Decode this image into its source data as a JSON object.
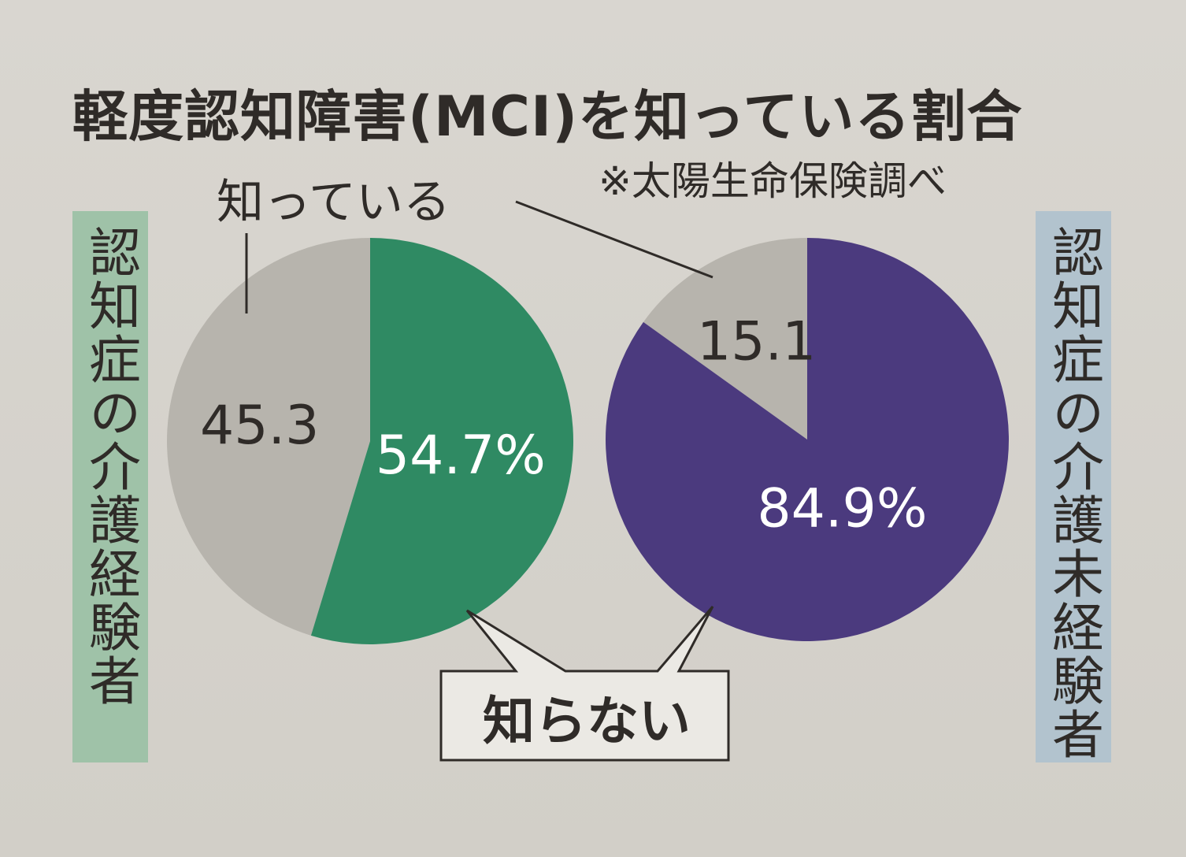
{
  "title": "軽度認知障害(MCI)を知っている割合",
  "source": "※太陽生命保険調べ",
  "labels": {
    "known": "知っている",
    "unknown": "知らない"
  },
  "colors": {
    "known": "#b7b4ad",
    "unknown_experienced": "#2f8a63",
    "unknown_inexperienced": "#4b3a7e",
    "panel_experienced": "#9fc2a8",
    "panel_inexperienced": "#b2c3ce"
  },
  "chart_data": [
    {
      "type": "pie",
      "group": "認知症の介護経験者",
      "categories": [
        "知っている",
        "知らない"
      ],
      "values": [
        45.3,
        54.7
      ],
      "value_labels": [
        "45.3",
        "54.7%"
      ]
    },
    {
      "type": "pie",
      "group": "認知症の介護未経験者",
      "categories": [
        "知っている",
        "知らない"
      ],
      "values": [
        15.1,
        84.9
      ],
      "value_labels": [
        "15.1",
        "84.9%"
      ]
    }
  ]
}
